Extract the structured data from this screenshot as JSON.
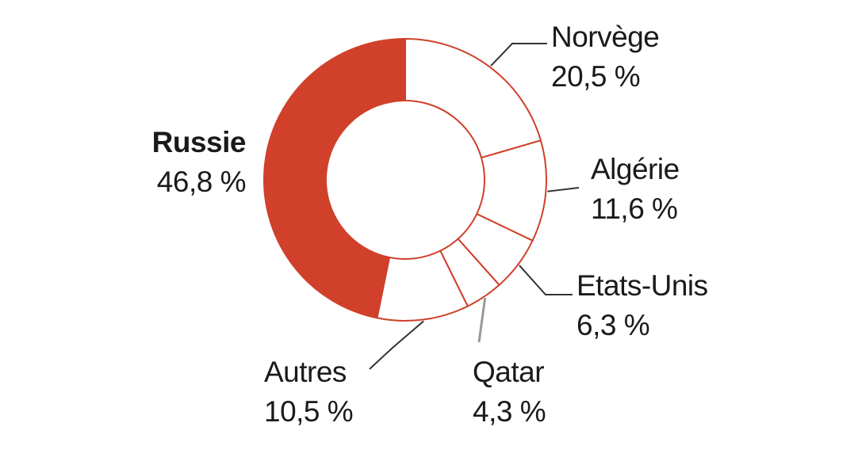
{
  "chart_data": {
    "type": "pie",
    "variant": "donut",
    "title": "",
    "slices": [
      {
        "label": "Norvège",
        "value": 20.5,
        "value_label": "20,5 %",
        "highlight": false
      },
      {
        "label": "Algérie",
        "value": 11.6,
        "value_label": "11,6 %",
        "highlight": false
      },
      {
        "label": "Etats-Unis",
        "value": 6.3,
        "value_label": "6,3 %",
        "highlight": false
      },
      {
        "label": "Qatar",
        "value": 4.3,
        "value_label": "4,3 %",
        "highlight": false
      },
      {
        "label": "Autres",
        "value": 10.5,
        "value_label": "10,5 %",
        "highlight": false
      },
      {
        "label": "Russie",
        "value": 46.8,
        "value_label": "46,8 %",
        "highlight": true
      }
    ],
    "colors": {
      "highlight": "#d0402a",
      "default_fill": "#ffffff",
      "stroke": "#d0402a",
      "leader": "#333333",
      "text": "#1a1a1a"
    }
  }
}
